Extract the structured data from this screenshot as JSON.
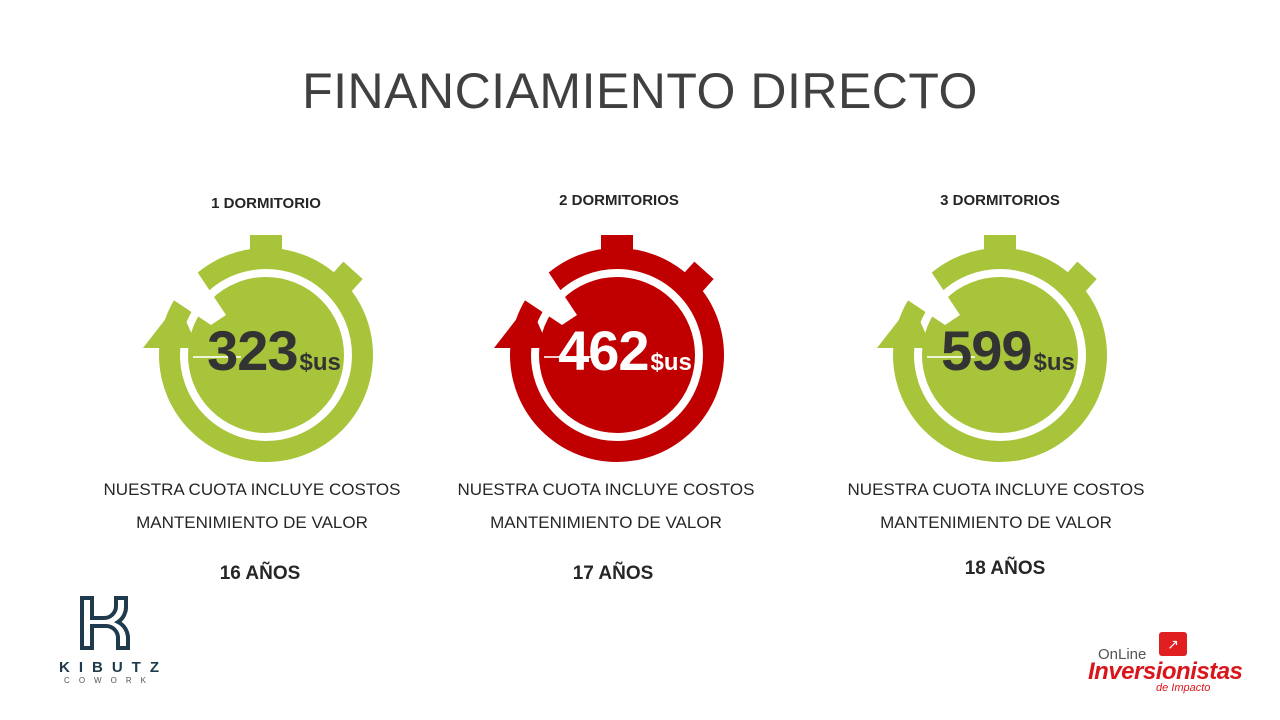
{
  "title": "FINANCIAMIENTO DIRECTO",
  "plans": [
    {
      "heading": "1 DORMITORIO",
      "amount": "323",
      "currency": "$us",
      "line1": "NUESTRA CUOTA INCLUYE COSTOS",
      "line2": "MANTENIMIENTO DE VALOR",
      "years": "16 AÑOS",
      "color": "#a8c43a",
      "text_color": "#262626"
    },
    {
      "heading": "2 DORMITORIOS",
      "amount": "462",
      "currency": "$us",
      "line1": "NUESTRA CUOTA INCLUYE COSTOS",
      "line2": "MANTENIMIENTO DE VALOR",
      "years": "17 AÑOS",
      "color": "#c00000",
      "text_color": "#ffffff"
    },
    {
      "heading": "3 DORMITORIOS",
      "amount": "599",
      "currency": "$us",
      "line1": "NUESTRA CUOTA INCLUYE COSTOS",
      "line2": "MANTENIMIENTO DE VALOR",
      "years": "18 AÑOS",
      "color": "#a8c43a",
      "text_color": "#262626"
    }
  ],
  "logos": {
    "kibutz": {
      "name": "KIBUTZ",
      "sub": "COWORK"
    },
    "inversionistas": {
      "online": "OnLine",
      "name": "Inversionistas",
      "sub": "de Impacto"
    }
  }
}
